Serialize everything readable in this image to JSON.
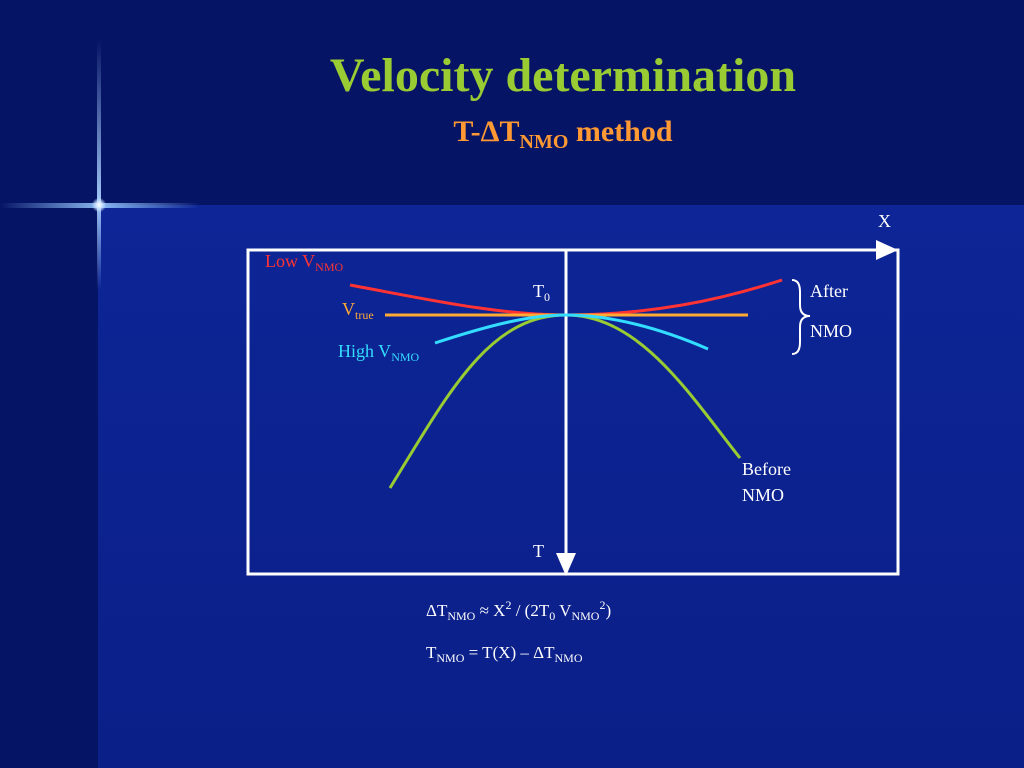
{
  "title": "Velocity determination",
  "subtitle": {
    "prefix": "T-",
    "delta": "Δ",
    "t": "T",
    "sub": "NMO",
    "suffix": " method"
  },
  "axes": {
    "x_label": "X",
    "t_label": "T",
    "t0_main": "T",
    "t0_sub": "0"
  },
  "labels": {
    "low_v_main": "Low V",
    "low_v_sub": "NMO",
    "v_true_main": "V",
    "v_true_sub": "true",
    "high_v_main": "High V",
    "high_v_sub": "NMO",
    "after_line1": "After",
    "after_line2": "NMO",
    "before_line1": "Before",
    "before_line2": "NMO"
  },
  "formulas": {
    "f1": {
      "delta": "Δ",
      "t": "T",
      "sub1": "NMO",
      "approx": " ≈ X",
      "sup1": "2",
      "mid": " / (2T",
      "sub2": "0",
      "v": " V",
      "sub3": "NMO",
      "sup2": "2",
      "end": ")"
    },
    "f2": {
      "t": "T",
      "sub1": "NMO",
      "mid": " = T(X) – ",
      "delta": "Δ",
      "t2": "T",
      "sub2": "NMO"
    }
  },
  "colors": {
    "title": "#99cc33",
    "subtitle": "#ff9933",
    "low_v": "#ff3333",
    "v_true": "#ffaa33",
    "high_v": "#33ddff",
    "before_nmo": "#99cc33"
  }
}
